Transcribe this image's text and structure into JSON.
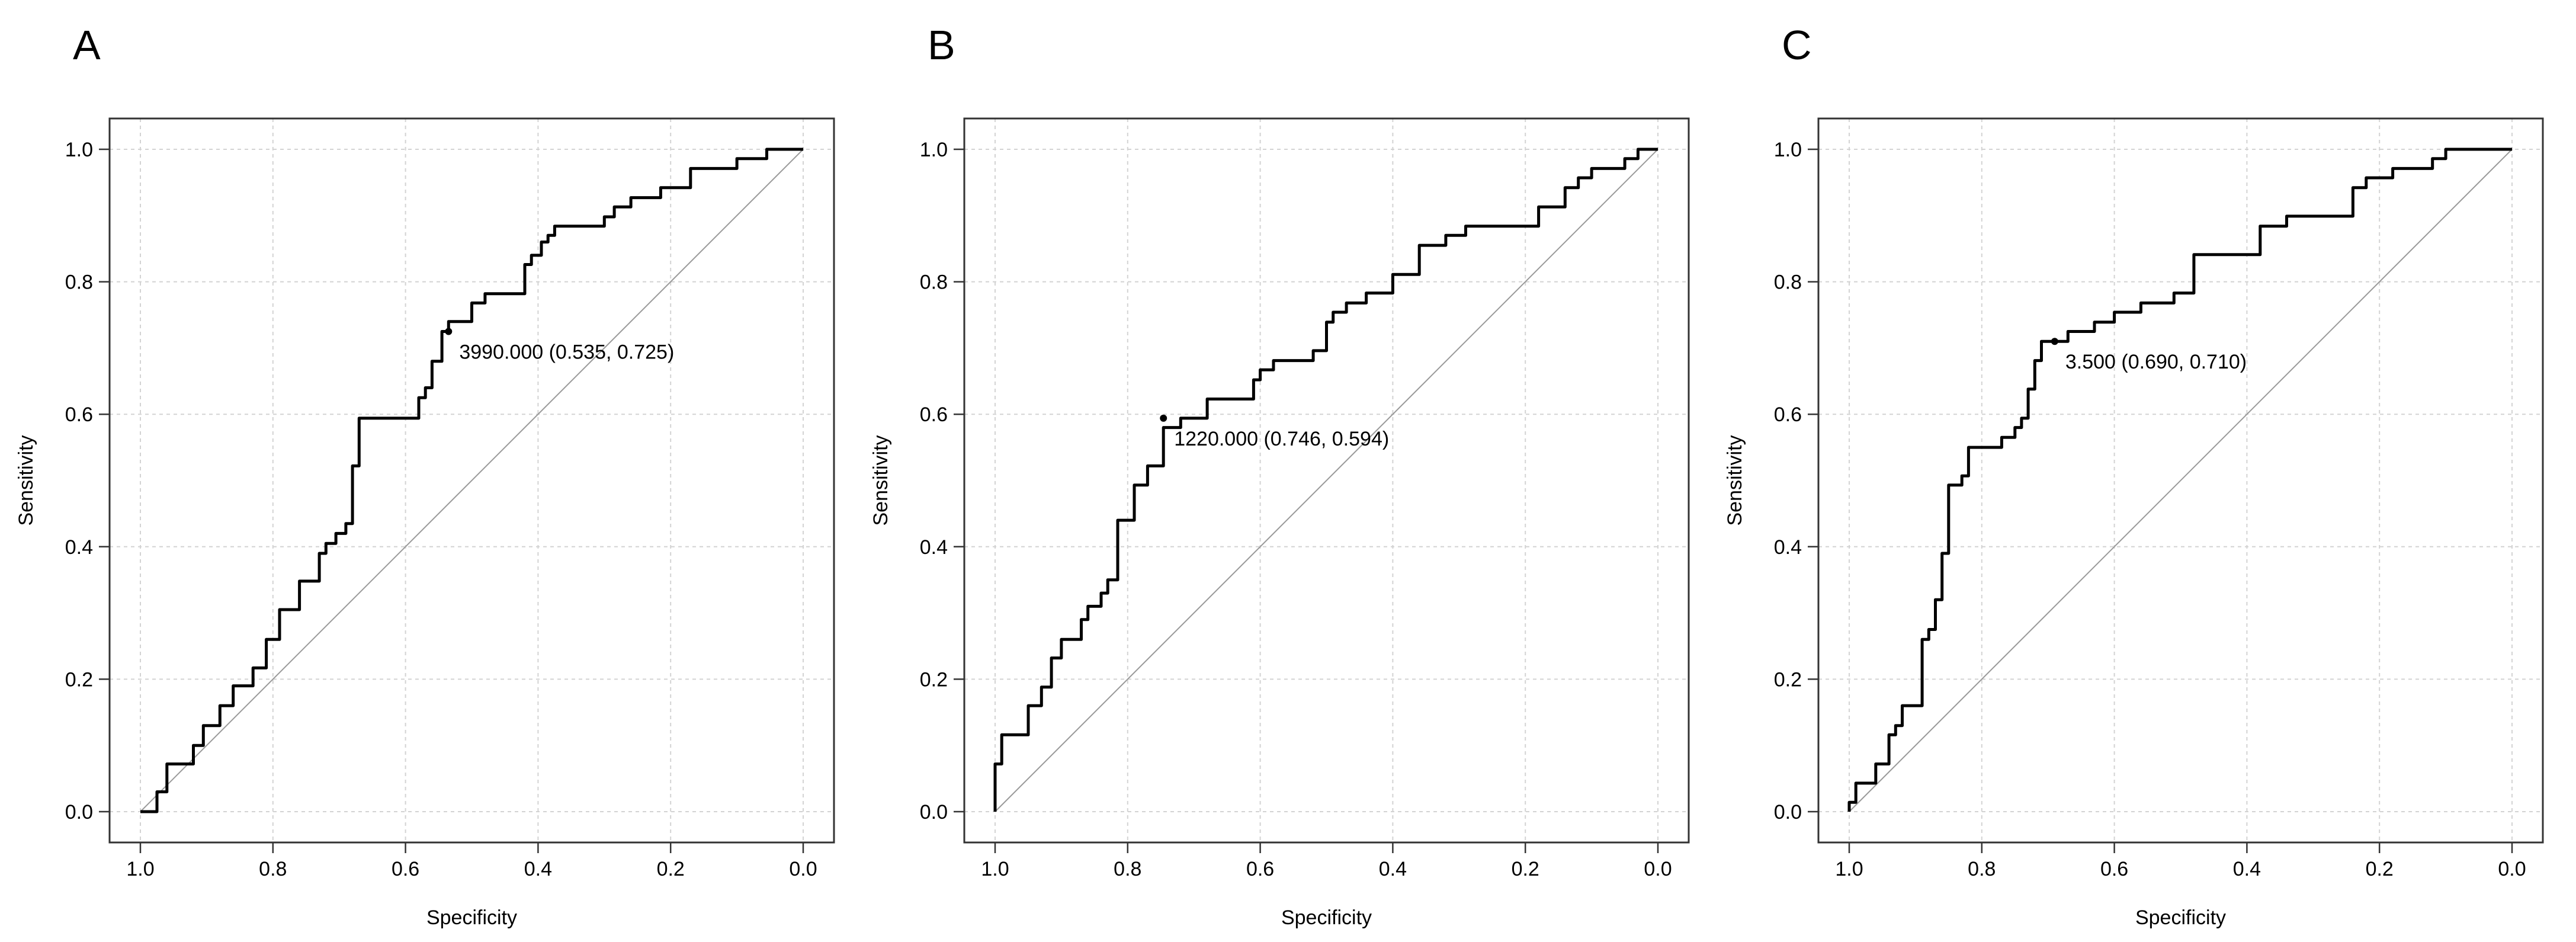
{
  "chart_data": [
    {
      "panel_label": "A",
      "type": "line",
      "subtype": "roc",
      "xlabel": "Specificity",
      "ylabel": "Sensitivity",
      "xlim": [
        1.0,
        0.0
      ],
      "ylim": [
        0.0,
        1.0
      ],
      "x_ticks": [
        "1.0",
        "0.8",
        "0.6",
        "0.4",
        "0.2",
        "0.0"
      ],
      "y_ticks": [
        "0.0",
        "0.2",
        "0.4",
        "0.6",
        "0.8",
        "1.0"
      ],
      "grid": true,
      "diagonal_reference": true,
      "annotation": {
        "text": "3990.000 (0.535, 0.725)",
        "specificity": 0.535,
        "sensitivity": 0.725
      },
      "curve": {
        "specificity": [
          1.0,
          0.975,
          0.975,
          0.96,
          0.96,
          0.92,
          0.92,
          0.905,
          0.905,
          0.88,
          0.88,
          0.86,
          0.86,
          0.83,
          0.83,
          0.81,
          0.81,
          0.79,
          0.79,
          0.76,
          0.76,
          0.73,
          0.73,
          0.72,
          0.72,
          0.705,
          0.705,
          0.69,
          0.69,
          0.68,
          0.68,
          0.67,
          0.67,
          0.65,
          0.65,
          0.58,
          0.58,
          0.57,
          0.57,
          0.56,
          0.56,
          0.545,
          0.545,
          0.535,
          0.535,
          0.5,
          0.5,
          0.48,
          0.48,
          0.42,
          0.42,
          0.41,
          0.41,
          0.395,
          0.395,
          0.385,
          0.385,
          0.375,
          0.375,
          0.36,
          0.36,
          0.3,
          0.3,
          0.285,
          0.285,
          0.26,
          0.26,
          0.215,
          0.215,
          0.17,
          0.17,
          0.1,
          0.1,
          0.055,
          0.055,
          0.0
        ],
        "sensitivity": [
          0.0,
          0.0,
          0.03,
          0.03,
          0.072,
          0.072,
          0.1,
          0.1,
          0.13,
          0.13,
          0.16,
          0.16,
          0.19,
          0.19,
          0.217,
          0.217,
          0.26,
          0.26,
          0.305,
          0.305,
          0.348,
          0.348,
          0.39,
          0.39,
          0.405,
          0.405,
          0.42,
          0.42,
          0.435,
          0.435,
          0.522,
          0.522,
          0.594,
          0.594,
          0.594,
          0.594,
          0.625,
          0.625,
          0.64,
          0.64,
          0.68,
          0.68,
          0.725,
          0.725,
          0.74,
          0.74,
          0.768,
          0.768,
          0.782,
          0.782,
          0.826,
          0.826,
          0.84,
          0.84,
          0.86,
          0.86,
          0.87,
          0.87,
          0.884,
          0.884,
          0.884,
          0.884,
          0.898,
          0.898,
          0.913,
          0.913,
          0.927,
          0.927,
          0.942,
          0.942,
          0.971,
          0.971,
          0.986,
          0.986,
          1.0,
          1.0
        ]
      }
    },
    {
      "panel_label": "B",
      "type": "line",
      "subtype": "roc",
      "xlabel": "Specificity",
      "ylabel": "Sensitivity",
      "xlim": [
        1.0,
        0.0
      ],
      "ylim": [
        0.0,
        1.0
      ],
      "x_ticks": [
        "1.0",
        "0.8",
        "0.6",
        "0.4",
        "0.2",
        "0.0"
      ],
      "y_ticks": [
        "0.0",
        "0.2",
        "0.4",
        "0.6",
        "0.8",
        "1.0"
      ],
      "grid": true,
      "diagonal_reference": true,
      "annotation": {
        "text": "1220.000 (0.746, 0.594)",
        "specificity": 0.746,
        "sensitivity": 0.594
      },
      "curve": {
        "specificity": [
          1.0,
          1.0,
          0.99,
          0.99,
          0.95,
          0.95,
          0.93,
          0.93,
          0.915,
          0.915,
          0.9,
          0.9,
          0.87,
          0.87,
          0.86,
          0.86,
          0.84,
          0.84,
          0.83,
          0.83,
          0.815,
          0.815,
          0.79,
          0.79,
          0.77,
          0.77,
          0.746,
          0.746,
          0.72,
          0.72,
          0.68,
          0.68,
          0.61,
          0.61,
          0.6,
          0.6,
          0.58,
          0.58,
          0.52,
          0.52,
          0.5,
          0.5,
          0.49,
          0.49,
          0.47,
          0.47,
          0.44,
          0.44,
          0.4,
          0.4,
          0.36,
          0.36,
          0.32,
          0.32,
          0.29,
          0.29,
          0.18,
          0.18,
          0.14,
          0.14,
          0.12,
          0.12,
          0.1,
          0.1,
          0.08,
          0.08,
          0.05,
          0.05,
          0.03,
          0.03,
          0.0
        ],
        "sensitivity": [
          0.0,
          0.072,
          0.072,
          0.116,
          0.116,
          0.16,
          0.16,
          0.188,
          0.188,
          0.232,
          0.232,
          0.26,
          0.26,
          0.29,
          0.29,
          0.31,
          0.31,
          0.33,
          0.33,
          0.35,
          0.35,
          0.44,
          0.44,
          0.493,
          0.493,
          0.522,
          0.522,
          0.58,
          0.58,
          0.594,
          0.594,
          0.623,
          0.623,
          0.652,
          0.652,
          0.667,
          0.667,
          0.681,
          0.681,
          0.696,
          0.696,
          0.739,
          0.739,
          0.754,
          0.754,
          0.768,
          0.768,
          0.783,
          0.783,
          0.811,
          0.811,
          0.855,
          0.855,
          0.87,
          0.87,
          0.884,
          0.884,
          0.913,
          0.913,
          0.942,
          0.942,
          0.957,
          0.957,
          0.971,
          0.971,
          0.971,
          0.971,
          0.986,
          0.986,
          1.0,
          1.0
        ]
      }
    },
    {
      "panel_label": "C",
      "type": "line",
      "subtype": "roc",
      "xlabel": "Specificity",
      "ylabel": "Sensitivity",
      "xlim": [
        1.0,
        0.0
      ],
      "ylim": [
        0.0,
        1.0
      ],
      "x_ticks": [
        "1.0",
        "0.8",
        "0.6",
        "0.4",
        "0.2",
        "0.0"
      ],
      "y_ticks": [
        "0.0",
        "0.2",
        "0.4",
        "0.6",
        "0.8",
        "1.0"
      ],
      "grid": true,
      "diagonal_reference": true,
      "annotation": {
        "text": "3.500 (0.690, 0.710)",
        "specificity": 0.69,
        "sensitivity": 0.71
      },
      "curve": {
        "specificity": [
          1.0,
          1.0,
          0.99,
          0.99,
          0.96,
          0.96,
          0.94,
          0.94,
          0.93,
          0.93,
          0.92,
          0.92,
          0.89,
          0.89,
          0.88,
          0.88,
          0.87,
          0.87,
          0.86,
          0.86,
          0.85,
          0.85,
          0.83,
          0.83,
          0.82,
          0.82,
          0.77,
          0.77,
          0.75,
          0.75,
          0.74,
          0.74,
          0.73,
          0.73,
          0.72,
          0.72,
          0.71,
          0.71,
          0.69,
          0.69,
          0.67,
          0.67,
          0.63,
          0.63,
          0.6,
          0.6,
          0.56,
          0.56,
          0.52,
          0.52,
          0.51,
          0.51,
          0.48,
          0.48,
          0.38,
          0.38,
          0.34,
          0.34,
          0.24,
          0.24,
          0.22,
          0.22,
          0.18,
          0.18,
          0.12,
          0.12,
          0.1,
          0.1,
          0.0
        ],
        "sensitivity": [
          0.0,
          0.014,
          0.014,
          0.043,
          0.043,
          0.072,
          0.072,
          0.116,
          0.116,
          0.13,
          0.13,
          0.16,
          0.16,
          0.26,
          0.26,
          0.275,
          0.275,
          0.32,
          0.32,
          0.39,
          0.39,
          0.493,
          0.493,
          0.507,
          0.507,
          0.55,
          0.55,
          0.565,
          0.565,
          0.58,
          0.58,
          0.594,
          0.594,
          0.638,
          0.638,
          0.681,
          0.681,
          0.71,
          0.71,
          0.71,
          0.71,
          0.725,
          0.725,
          0.739,
          0.739,
          0.754,
          0.754,
          0.768,
          0.768,
          0.768,
          0.768,
          0.783,
          0.783,
          0.841,
          0.841,
          0.884,
          0.884,
          0.899,
          0.899,
          0.942,
          0.942,
          0.957,
          0.957,
          0.971,
          0.971,
          0.986,
          0.986,
          1.0,
          1.0
        ]
      }
    }
  ]
}
